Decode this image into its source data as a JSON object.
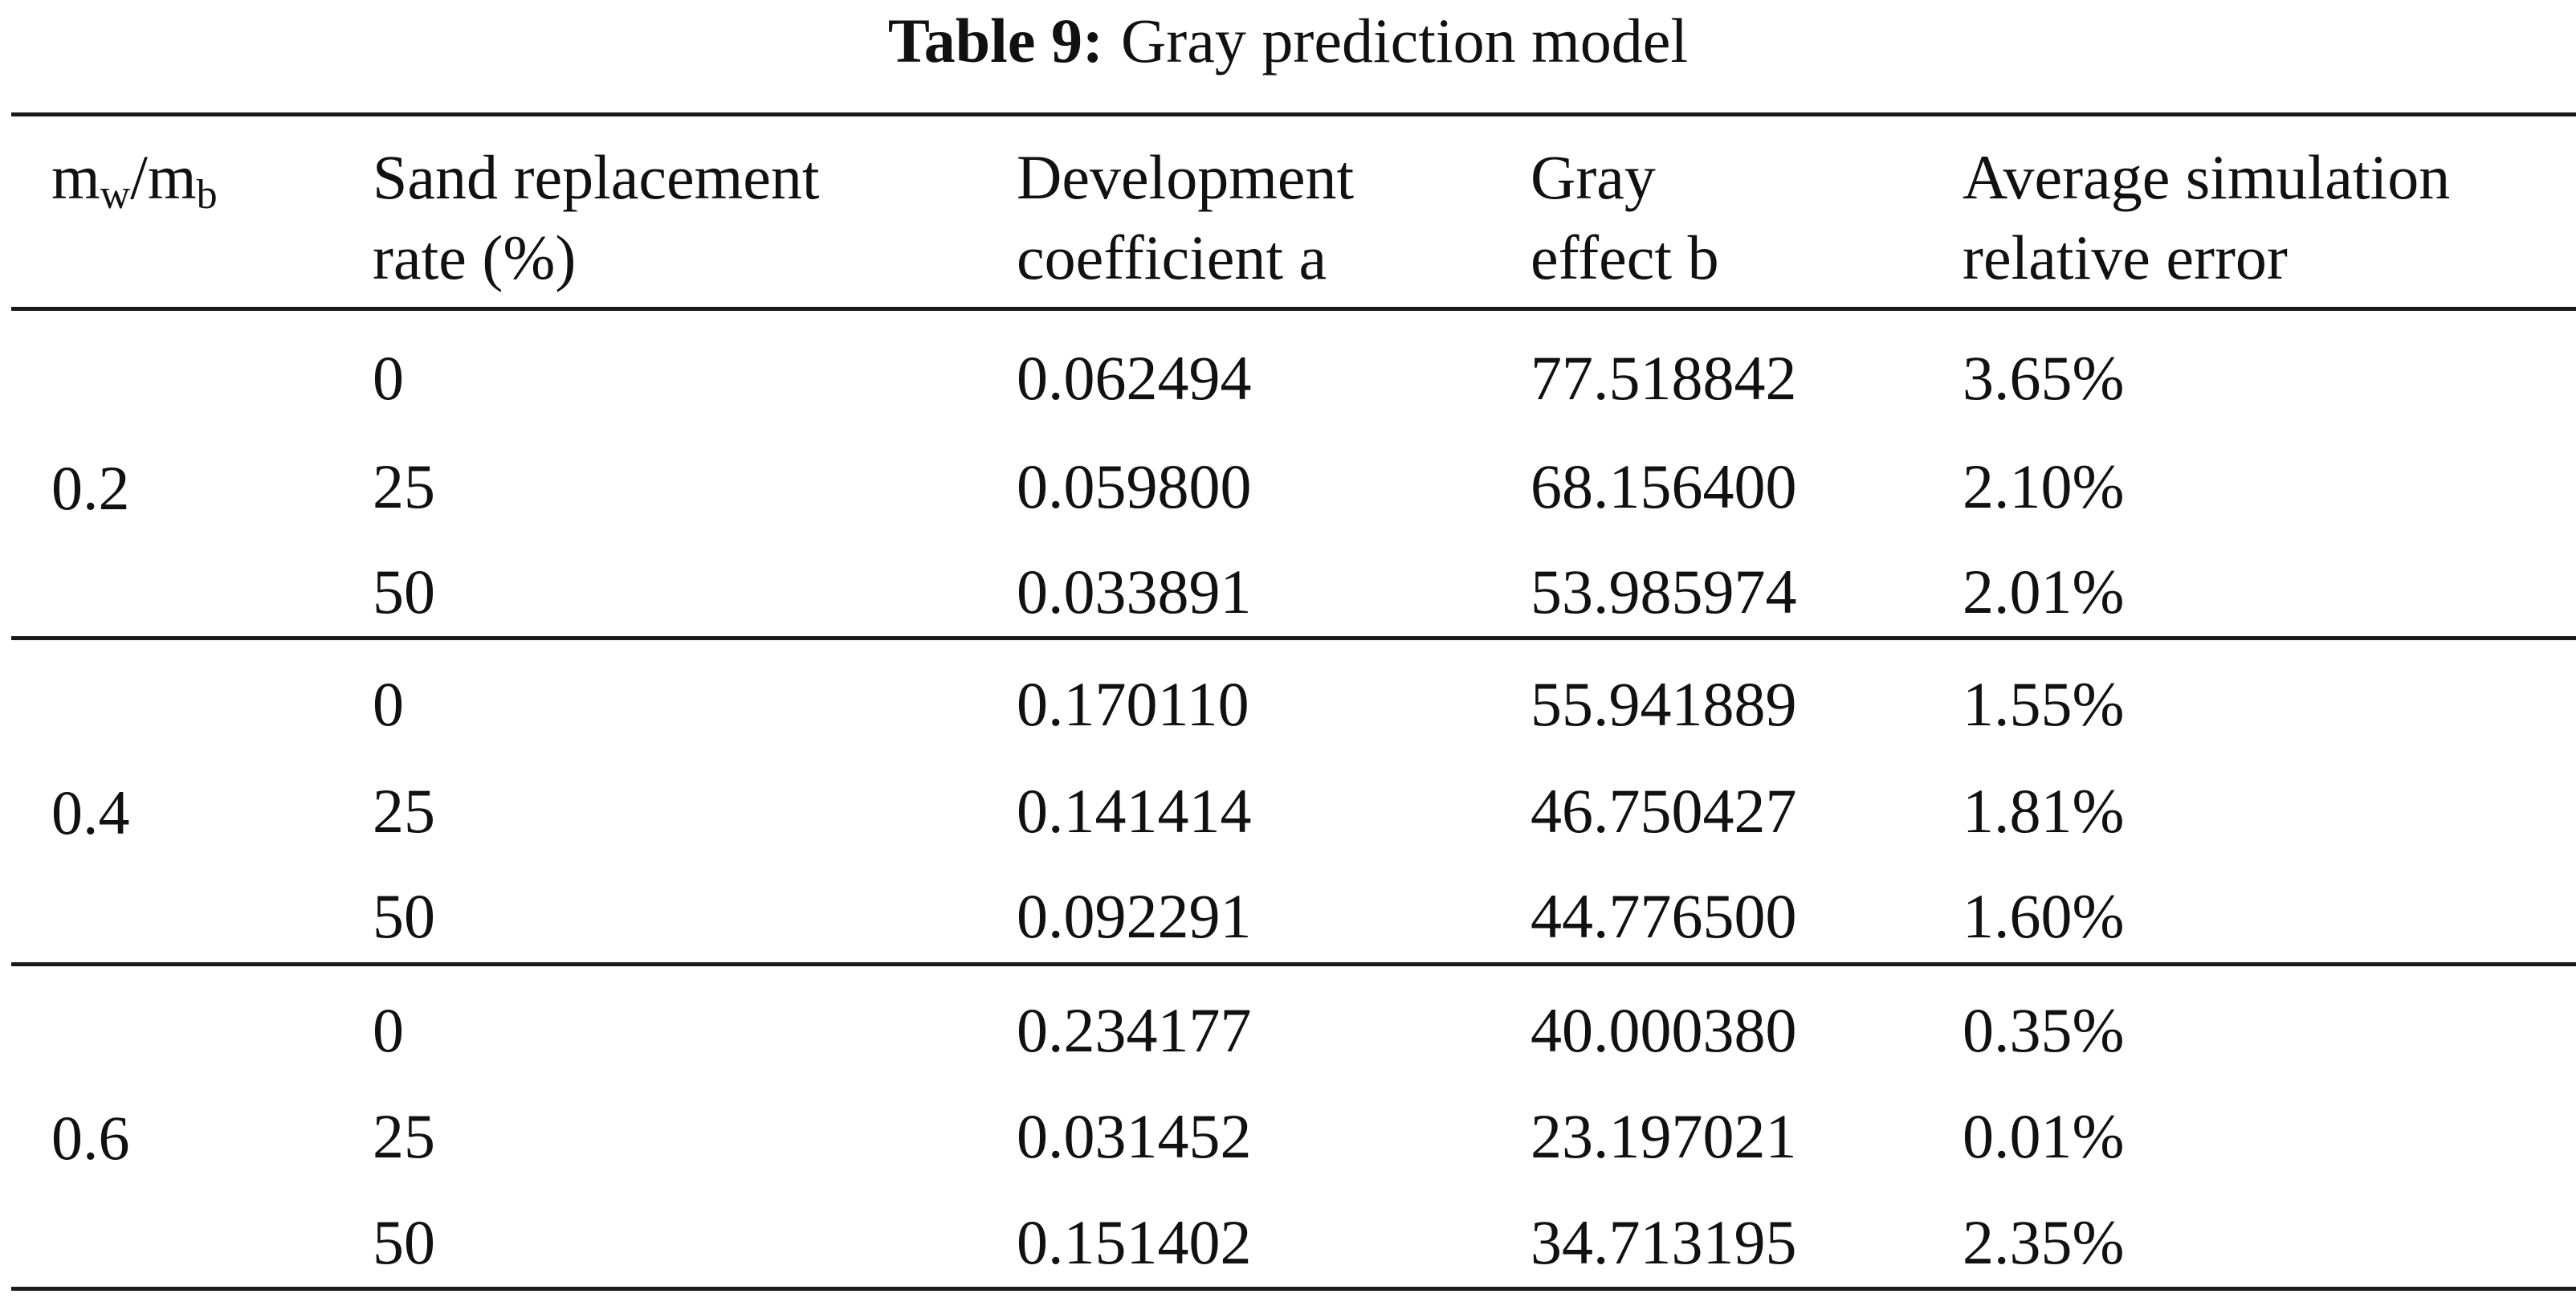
{
  "caption": {
    "label": "Table 9:",
    "text": "Gray prediction model"
  },
  "header": {
    "col1": {
      "base1": "m",
      "sub1": "w",
      "slash": "/",
      "base2": "m",
      "sub2": "b"
    },
    "col2": [
      "Sand replacement",
      "rate (%)"
    ],
    "col3": [
      "Development",
      "coefficient a"
    ],
    "col4": [
      "Gray",
      "effect b"
    ],
    "col5": [
      "Average simulation",
      "relative error"
    ]
  },
  "groups": [
    {
      "ratio": "0.2",
      "rows": [
        [
          "0",
          "0.062494",
          "77.518842",
          "3.65%"
        ],
        [
          "25",
          "0.059800",
          "68.156400",
          "2.10%"
        ],
        [
          "50",
          "0.033891",
          "53.985974",
          "2.01%"
        ]
      ]
    },
    {
      "ratio": "0.4",
      "rows": [
        [
          "0",
          "0.170110",
          "55.941889",
          "1.55%"
        ],
        [
          "25",
          "0.141414",
          "46.750427",
          "1.81%"
        ],
        [
          "50",
          "0.092291",
          "44.776500",
          "1.60%"
        ]
      ]
    },
    {
      "ratio": "0.6",
      "rows": [
        [
          "0",
          "0.234177",
          "40.000380",
          "0.35%"
        ],
        [
          "25",
          "0.031452",
          "23.197021",
          "0.01%"
        ],
        [
          "50",
          "0.151402",
          "34.713195",
          "2.35%"
        ]
      ]
    }
  ]
}
